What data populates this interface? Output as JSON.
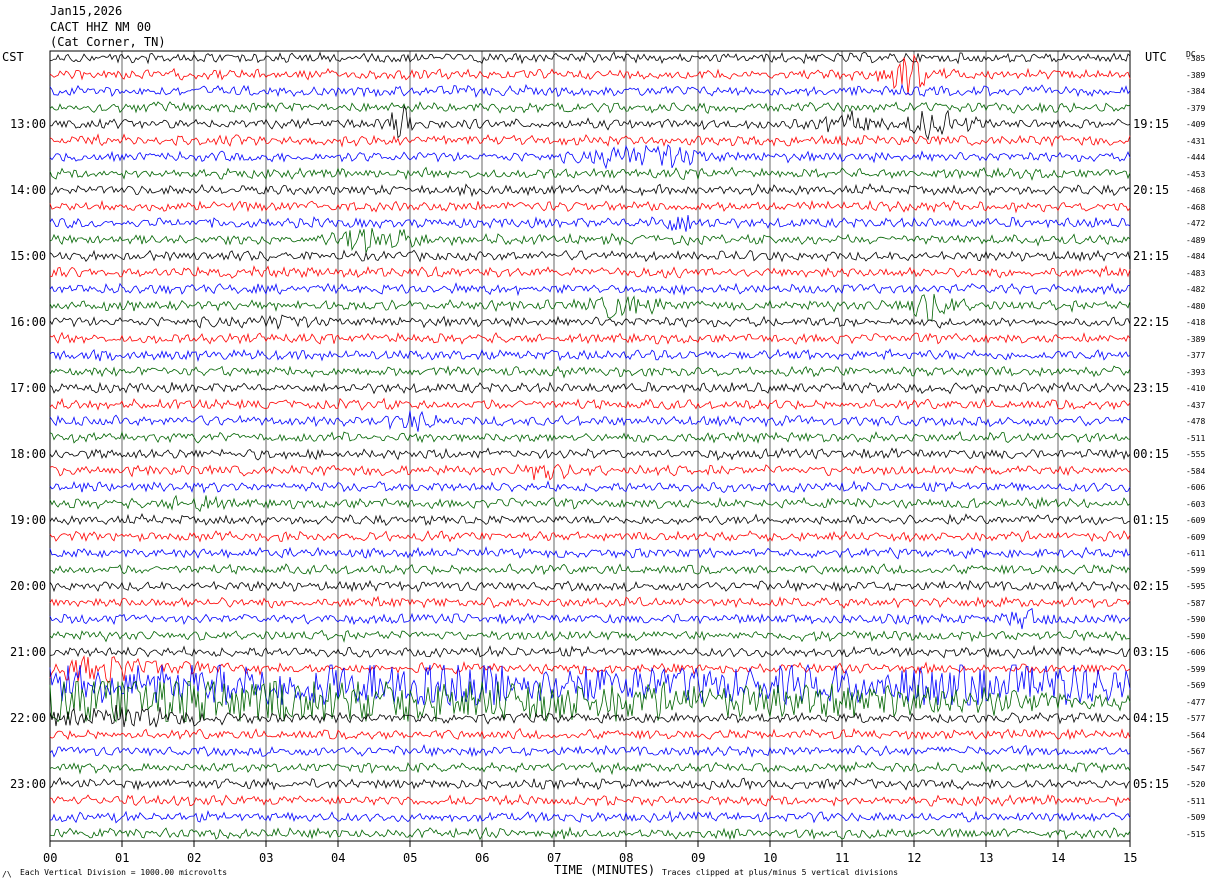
{
  "header": {
    "date": "Jan15,2026",
    "station": "CACT HHZ NM 00",
    "location": "(Cat Corner, TN)"
  },
  "left_axis_title": "CST",
  "right_axis_title": "UTC",
  "dc_title": "DC",
  "footer": {
    "division_note": "Each Vertical Division = 1000.00 microvolts",
    "clip_note": "Traces clipped at plus/minus 5 vertical divisions",
    "corner_mark": "/\\"
  },
  "chart_data": {
    "type": "line",
    "subtype": "helicorder",
    "xlabel": "TIME (MINUTES)",
    "x_ticks": [
      "00",
      "01",
      "02",
      "03",
      "04",
      "05",
      "06",
      "07",
      "08",
      "09",
      "10",
      "11",
      "12",
      "13",
      "14",
      "15"
    ],
    "xlim": [
      0,
      15
    ],
    "grid": true,
    "trace_colors": [
      "#000000",
      "#ff0000",
      "#0000ff",
      "#006400"
    ],
    "hour_labels_cst": [
      "13:00",
      "14:00",
      "15:00",
      "16:00",
      "17:00",
      "18:00",
      "19:00",
      "20:00",
      "21:00",
      "22:00",
      "23:00"
    ],
    "hour_labels_utc": [
      "19:15",
      "20:15",
      "21:15",
      "22:15",
      "23:15",
      "00:15",
      "01:15",
      "02:15",
      "03:15",
      "04:15",
      "05:15"
    ],
    "dc_offsets": [
      "-385",
      "-389",
      "-384",
      "-379",
      "-409",
      "-431",
      "-444",
      "-453",
      "-468",
      "-468",
      "-472",
      "-489",
      "-484",
      "-483",
      "-482",
      "-480",
      "-418",
      "-389",
      "-377",
      "-393",
      "-410",
      "-437",
      "-478",
      "-511",
      "-555",
      "-584",
      "-606",
      "-603",
      "-609",
      "-609",
      "-611",
      "-599",
      "-595",
      "-587",
      "-590",
      "-590",
      "-606",
      "-599",
      "-569",
      "-477",
      "-577",
      "-564",
      "-567",
      "-547",
      "-520",
      "-511",
      "-509",
      "-515"
    ]
  }
}
